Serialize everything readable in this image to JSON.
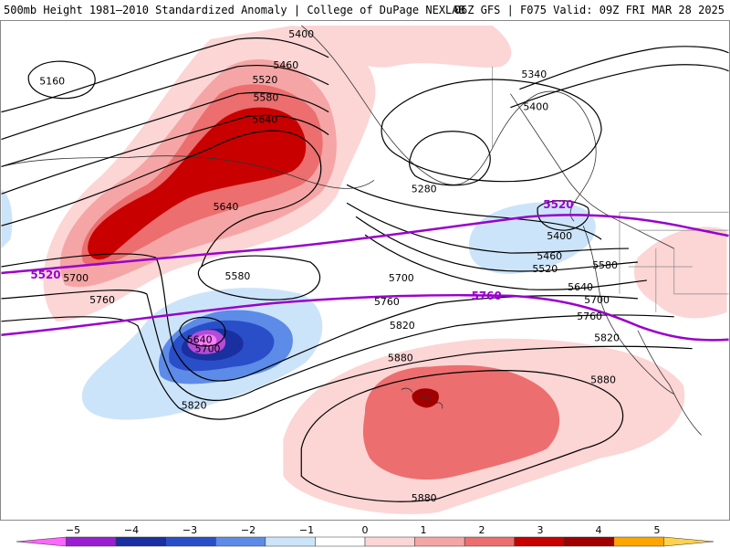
{
  "header": {
    "title_left": "500mb Height 1981–2010 Standardized Anomaly | College of DuPage NEXLAB",
    "title_right": "06Z GFS | F075 Valid: 09Z FRI MAR 28 2025"
  },
  "colors": {
    "anomaly_pos_1": "#fcd5d5",
    "anomaly_pos_2": "#f5a5a5",
    "anomaly_pos_3": "#ec6e6e",
    "anomaly_pos_4": "#c80000",
    "anomaly_pos_5": "#a00000",
    "anomaly_neg_1": "#cce4fa",
    "anomaly_neg_2": "#5d8be8",
    "anomaly_neg_3": "#2a4ec8",
    "anomaly_neg_4": "#1a2fa0",
    "anomaly_neg_5": "#b44cd8",
    "contour": "#000000",
    "purple_contour": "#9900cc",
    "coastline": "#222222"
  },
  "contour_labels": [
    {
      "text": "5400"
    },
    {
      "text": "5460"
    },
    {
      "text": "5520"
    },
    {
      "text": "5580"
    },
    {
      "text": "5640"
    },
    {
      "text": "5640"
    },
    {
      "text": "5580"
    },
    {
      "text": "5700"
    },
    {
      "text": "5760"
    },
    {
      "text": "5640"
    },
    {
      "text": "5700"
    },
    {
      "text": "5820"
    },
    {
      "text": "5160"
    },
    {
      "text": "5340"
    },
    {
      "text": "5400"
    },
    {
      "text": "5280"
    },
    {
      "text": "5400"
    },
    {
      "text": "5460"
    },
    {
      "text": "5520"
    },
    {
      "text": "5580"
    },
    {
      "text": "5640"
    },
    {
      "text": "5700"
    },
    {
      "text": "5760"
    },
    {
      "text": "5700"
    },
    {
      "text": "5760"
    },
    {
      "text": "5820"
    },
    {
      "text": "5820"
    },
    {
      "text": "5880"
    },
    {
      "text": "5880"
    },
    {
      "text": "5880"
    }
  ],
  "purple_labels": [
    {
      "text": "5520"
    },
    {
      "text": "5520"
    },
    {
      "text": "5760"
    }
  ],
  "colorbar": {
    "ticks": [
      "−5",
      "−4",
      "−3",
      "−2",
      "−1",
      "0",
      "1",
      "2",
      "3",
      "4",
      "5"
    ],
    "colors": [
      "#ff66ff",
      "#9a1fd2",
      "#1a2fa0",
      "#2a4ec8",
      "#5d8be8",
      "#cce4fa",
      "#ffffff",
      "#fcd5d5",
      "#f5a5a5",
      "#ec6e6e",
      "#c80000",
      "#a00000",
      "#ffa500",
      "#ffd24d"
    ]
  }
}
